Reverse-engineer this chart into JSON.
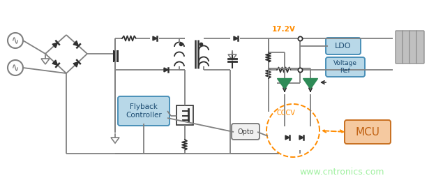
{
  "bg_color": "#ffffff",
  "lc": "#808080",
  "dc": "#303030",
  "lw": 1.3,
  "watermark": "www.cntronics.com",
  "watermark_color": "#90EE90",
  "voltage_label": "17.2V",
  "voltage_color": "#FF8C00",
  "flyback_label": "Flyback\nController",
  "flyback_box_color": "#B8D8E8",
  "flyback_edge_color": "#4A90B8",
  "ldo_label": "LDO",
  "ldo_box_color": "#B8D8E8",
  "ldo_edge_color": "#4A90B8",
  "vref_label": "Voltage\nRef",
  "vref_box_color": "#B8D8E8",
  "vref_edge_color": "#4A90B8",
  "mcu_label": "MCU",
  "mcu_box_color": "#F5C9A0",
  "mcu_edge_color": "#C87020",
  "opto_label": "Opto",
  "opto_box_color": "#F0F0F0",
  "opto_edge_color": "#808080",
  "cccv_label": "CCCV",
  "cccv_color": "#FF8C00",
  "triangle_color": "#2E8B57",
  "arrow_orange": "#FF8C00",
  "bat_color": "#C0C0C0",
  "bat_edge": "#909090"
}
